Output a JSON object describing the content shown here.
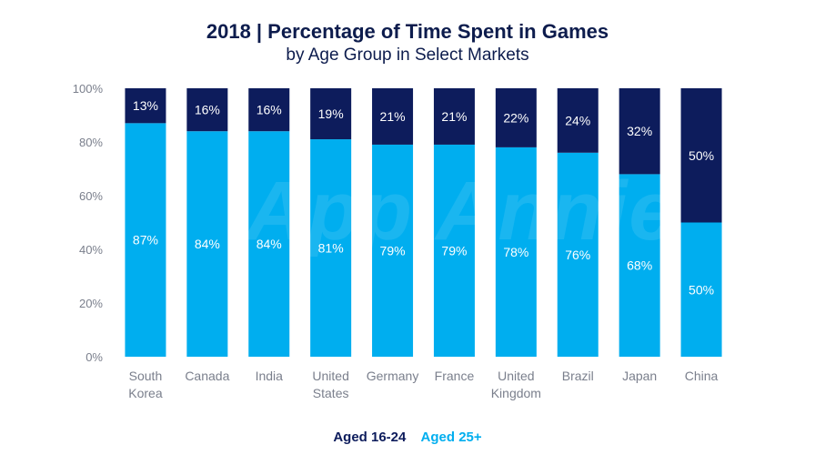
{
  "chart_data": {
    "type": "bar",
    "stacked": true,
    "title": "2018 | Percentage of Time Spent in Games",
    "subtitle": "by Age Group in Select Markets",
    "categories": [
      [
        "South",
        "Korea"
      ],
      [
        "Canada"
      ],
      [
        "India"
      ],
      [
        "United",
        "States"
      ],
      [
        "Germany"
      ],
      [
        "France"
      ],
      [
        "United",
        "Kingdom"
      ],
      [
        "Brazil"
      ],
      [
        "Japan"
      ],
      [
        "China"
      ]
    ],
    "series": [
      {
        "name": "Aged 16-24",
        "color": "#0d1c5c",
        "values": [
          13,
          16,
          16,
          19,
          21,
          21,
          22,
          24,
          32,
          50
        ]
      },
      {
        "name": "Aged 25+",
        "color": "#00aeef",
        "values": [
          87,
          84,
          84,
          81,
          79,
          79,
          78,
          76,
          68,
          50
        ]
      }
    ],
    "ylim": [
      0,
      100
    ],
    "yticks": [
      "0%",
      "20%",
      "40%",
      "60%",
      "80%",
      "100%"
    ],
    "grid": false,
    "legend_position": "bottom-center",
    "watermark": "App Annie"
  }
}
